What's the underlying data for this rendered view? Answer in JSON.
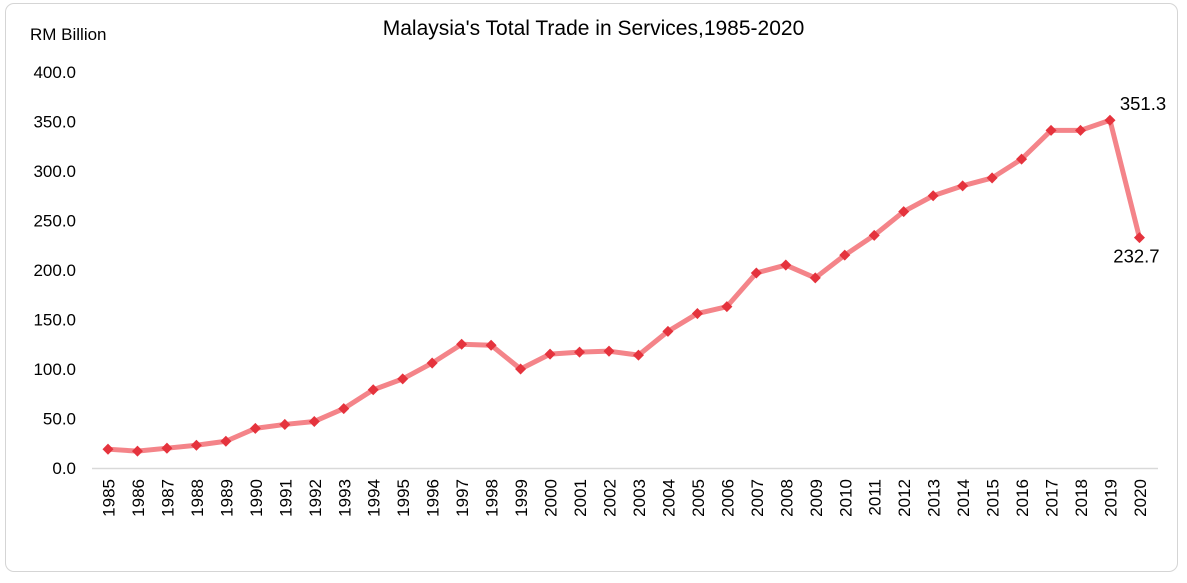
{
  "chart_data": {
    "type": "line",
    "title": "Malaysia's Total Trade in Services,1985-2020",
    "ylabel": "RM Billion",
    "xlabel": "",
    "categories": [
      "1985",
      "1986",
      "1987",
      "1988",
      "1989",
      "1990",
      "1991",
      "1992",
      "1993",
      "1994",
      "1995",
      "1996",
      "1997",
      "1998",
      "1999",
      "2000",
      "2001",
      "2002",
      "2003",
      "2004",
      "2005",
      "2006",
      "2007",
      "2008",
      "2009",
      "2010",
      "2011",
      "2012",
      "2013",
      "2014",
      "2015",
      "2016",
      "2017",
      "2018",
      "2019",
      "2020"
    ],
    "values": [
      19,
      17,
      20,
      23,
      27,
      40,
      44,
      47,
      60,
      79,
      90,
      106,
      125,
      124,
      100,
      115,
      117,
      118,
      114,
      138,
      156,
      163,
      197,
      205,
      192,
      215,
      235,
      259,
      275,
      285,
      293,
      312,
      341,
      341,
      351.3,
      232.7
    ],
    "ylim": [
      0,
      400
    ],
    "ytick_step": 50,
    "yticks": [
      "400.0",
      "350.0",
      "300.0",
      "250.0",
      "200.0",
      "150.0",
      "100.0",
      "50.0",
      "0.0"
    ],
    "grid": false,
    "legend": "none",
    "marker": "diamond",
    "data_labels": [
      {
        "category": "2019",
        "text": "351.3",
        "placement": "above"
      },
      {
        "category": "2020",
        "text": "232.7",
        "placement": "below"
      }
    ],
    "colors": {
      "line": "#f48489",
      "marker": "#e5333d",
      "axis": "#d9d9d9",
      "text": "#000000",
      "frame_border": "#d5d5d5",
      "background": "#ffffff"
    }
  }
}
